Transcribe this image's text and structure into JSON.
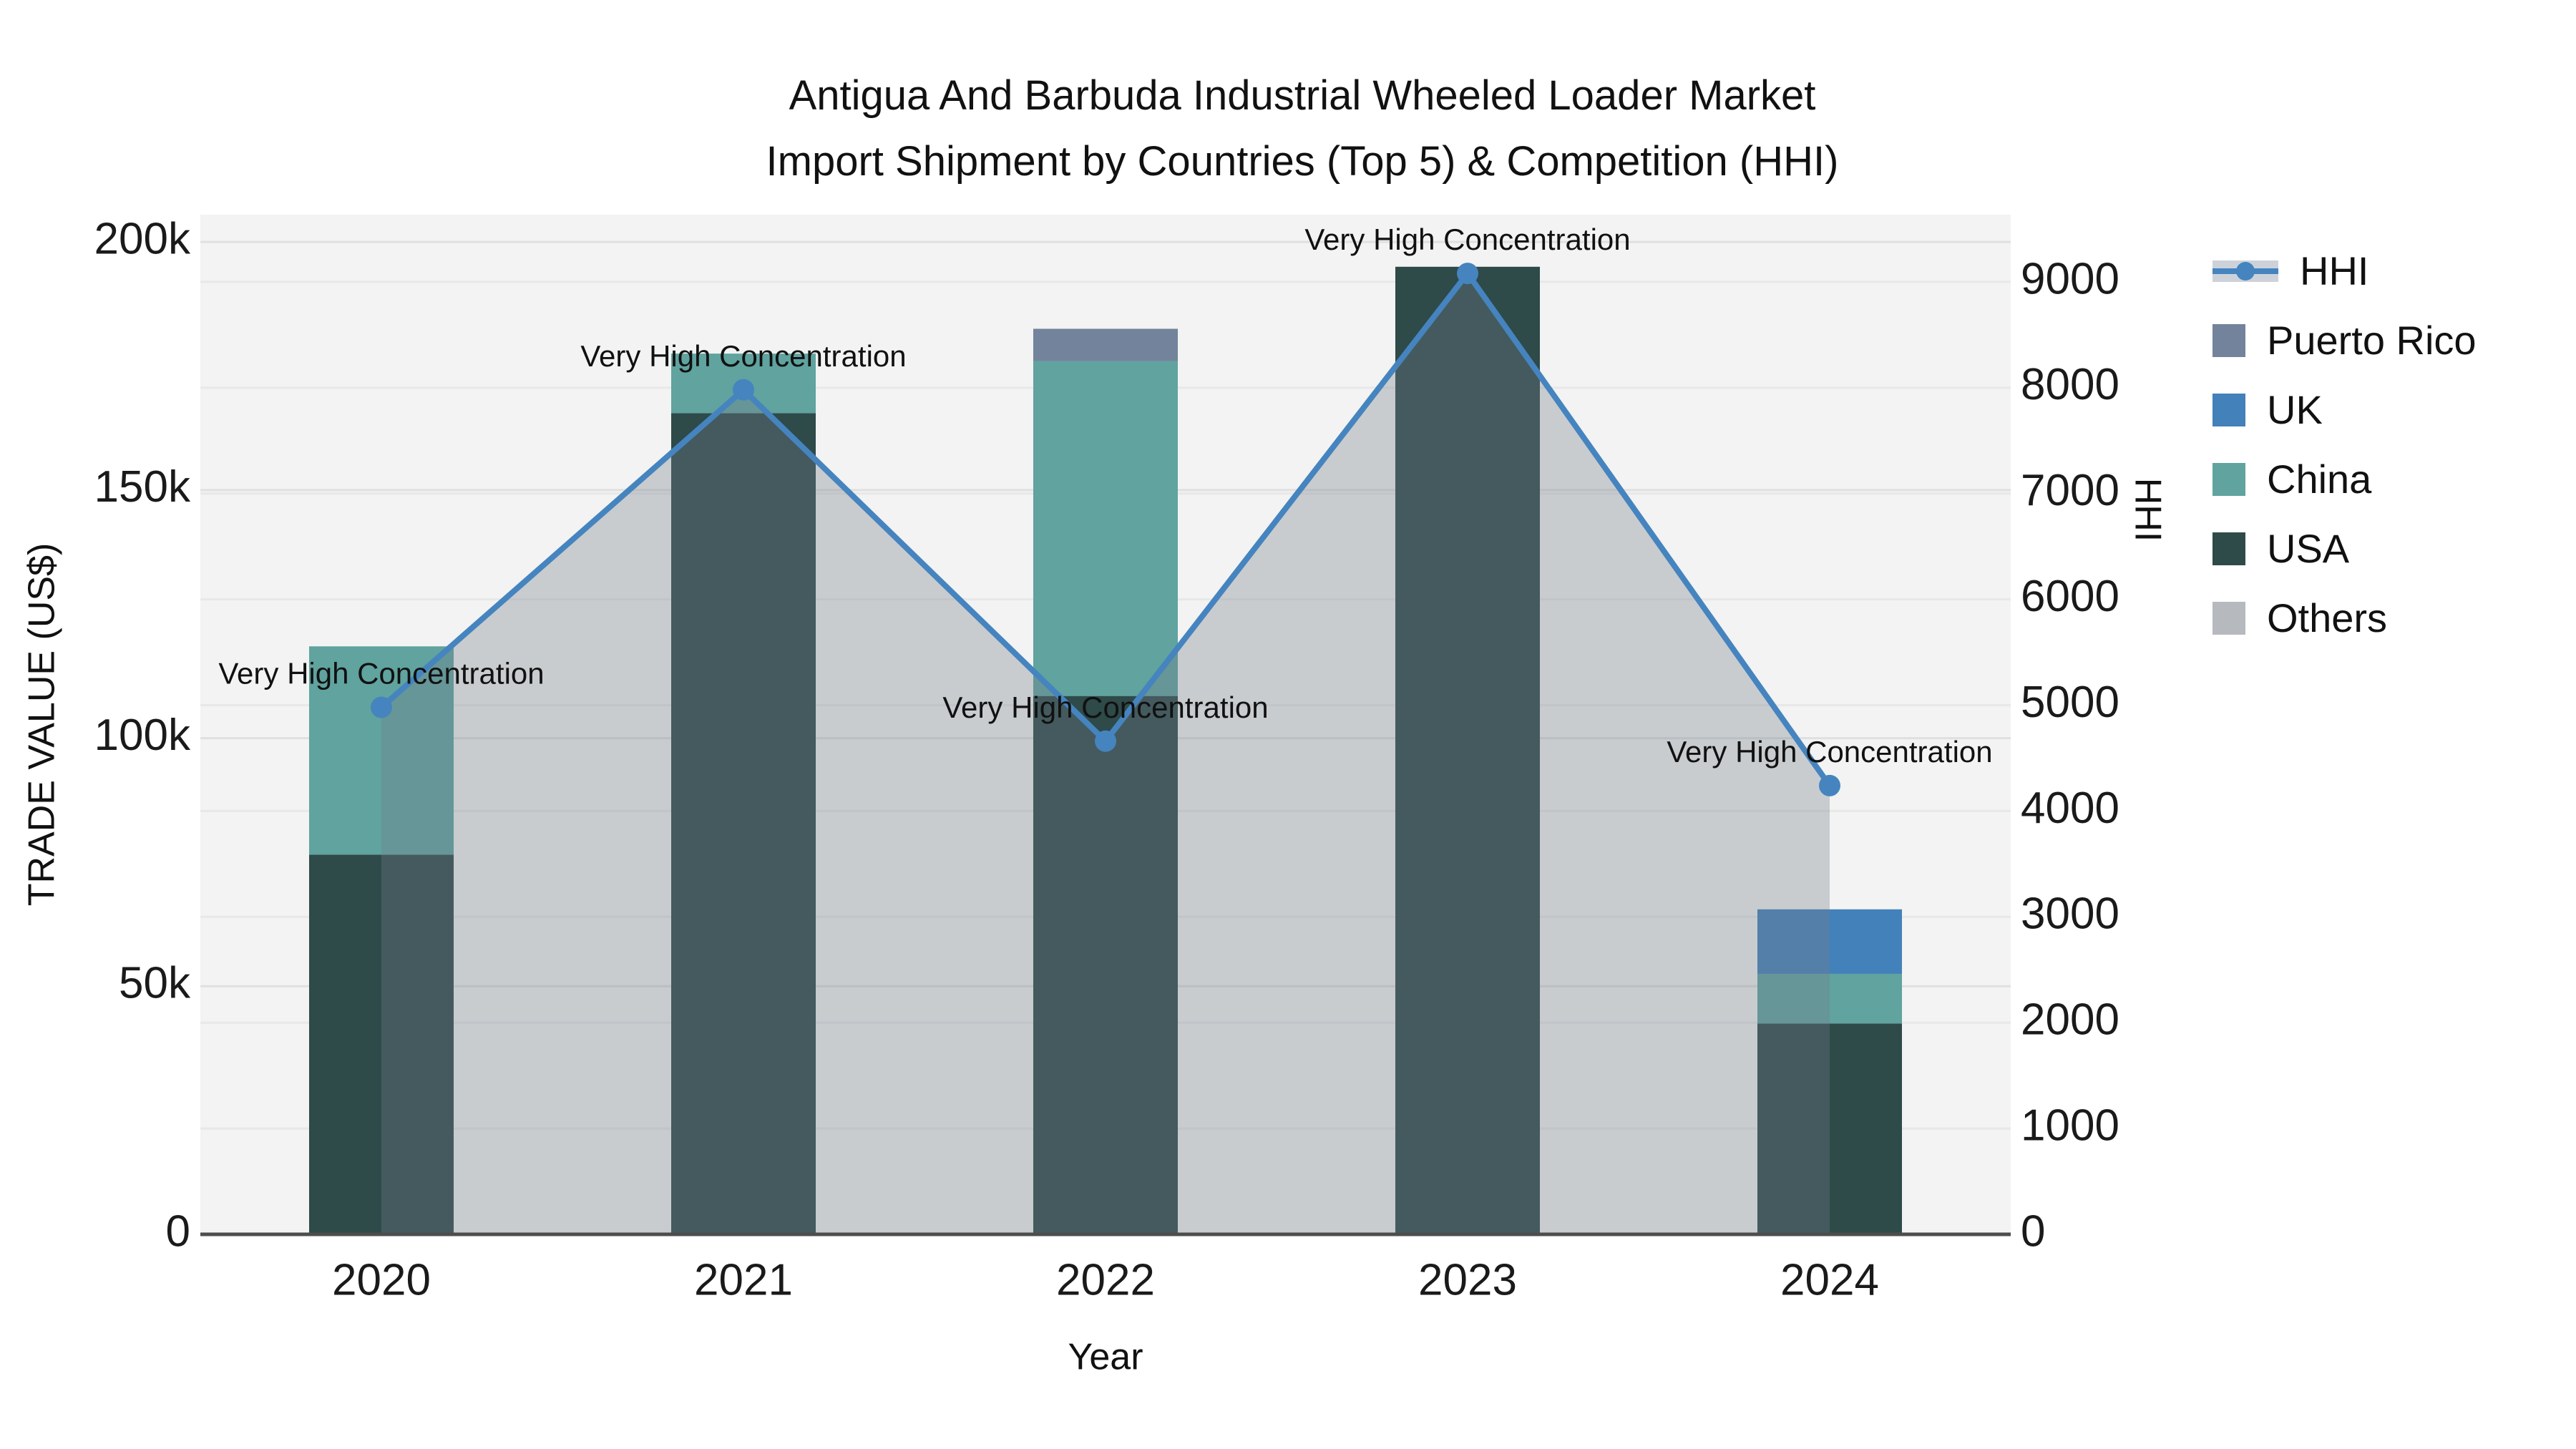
{
  "title": {
    "line1": "Antigua And Barbuda Industrial Wheeled Loader Market",
    "line2": "Import Shipment by Countries (Top 5) & Competition (HHI)"
  },
  "axes": {
    "x": {
      "title": "Year",
      "categories": [
        "2020",
        "2021",
        "2022",
        "2023",
        "2024"
      ]
    },
    "y_left": {
      "title": "TRADE VALUE (US$)",
      "tick_labels": [
        "0",
        "50k",
        "100k",
        "150k",
        "200k"
      ],
      "tick_values": [
        0,
        50000,
        100000,
        150000,
        200000
      ],
      "max": 205500
    },
    "y_right": {
      "title": "HHI",
      "tick_labels": [
        "0",
        "1000",
        "2000",
        "3000",
        "4000",
        "5000",
        "6000",
        "7000",
        "8000",
        "9000"
      ],
      "tick_values": [
        0,
        1000,
        2000,
        3000,
        4000,
        5000,
        6000,
        7000,
        8000,
        9000
      ],
      "max": 9635
    }
  },
  "legend": {
    "items": [
      {
        "label": "HHI",
        "type": "line",
        "color": "#4584bf",
        "band": "#cdd2da"
      },
      {
        "label": "Puerto Rico",
        "type": "swatch",
        "color": "#72839b"
      },
      {
        "label": "UK",
        "type": "swatch",
        "color": "#4381ba"
      },
      {
        "label": "China",
        "type": "swatch",
        "color": "#60a39f"
      },
      {
        "label": "USA",
        "type": "swatch",
        "color": "#2e4a49"
      },
      {
        "label": "Others",
        "type": "swatch",
        "color": "#b6babe"
      }
    ]
  },
  "chart_data": {
    "type": "combo-stacked-bar-and-line-area",
    "categories": [
      "2020",
      "2021",
      "2022",
      "2023",
      "2024"
    ],
    "bar_series": [
      {
        "name": "USA",
        "color": "#2e4a49",
        "values": [
          76500,
          165500,
          108500,
          195000,
          42500
        ]
      },
      {
        "name": "China",
        "color": "#60a39f",
        "values": [
          42000,
          12000,
          67500,
          0,
          10000
        ]
      },
      {
        "name": "UK",
        "color": "#4381ba",
        "values": [
          0,
          0,
          0,
          0,
          13000
        ]
      },
      {
        "name": "Puerto Rico",
        "color": "#72839b",
        "values": [
          0,
          0,
          6500,
          0,
          0
        ]
      },
      {
        "name": "Others",
        "color": "#b6babe",
        "values": [
          0,
          0,
          0,
          0,
          0
        ]
      }
    ],
    "line_series": {
      "name": "HHI",
      "axis": "right",
      "color": "#4584bf",
      "area_fill": "rgba(116,124,138,0.33)",
      "values": [
        4980,
        7980,
        4660,
        9080,
        4240
      ]
    },
    "annotations": [
      {
        "category": "2020",
        "text": "Very High Concentration"
      },
      {
        "category": "2021",
        "text": "Very High Concentration"
      },
      {
        "category": "2022",
        "text": "Very High Concentration"
      },
      {
        "category": "2023",
        "text": "Very High Concentration"
      },
      {
        "category": "2024",
        "text": "Very High Concentration"
      }
    ],
    "xlabel": "Year",
    "ylabel_left": "TRADE VALUE (US$)",
    "ylabel_right": "HHI",
    "ylim_left": [
      0,
      205500
    ],
    "ylim_right": [
      0,
      9635
    ],
    "plot_background": "#f2f3f2",
    "grid": true,
    "gridline_color_left": "#dfe0df",
    "gridline_color_right": "#e7e8e7",
    "axis_line_color": "#4d4d4d",
    "legend_position": "right"
  }
}
